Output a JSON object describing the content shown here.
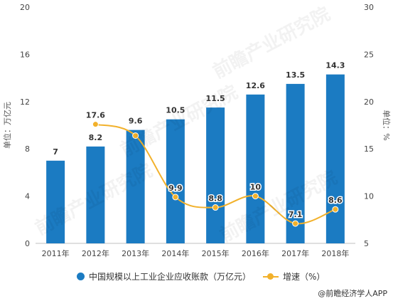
{
  "watermark": "前瞻产业研究院",
  "source": "@前瞻经济学人APP",
  "colors": {
    "bar": "#1B7BC2",
    "line": "#F2B12B",
    "grid": "#d9d9d9"
  },
  "chart_data": {
    "type": "bar",
    "categories": [
      "2011年",
      "2012年",
      "2013年",
      "2014年",
      "2015年",
      "2016年",
      "2017年",
      "2018年"
    ],
    "series": [
      {
        "name": "中国规模以上工业企业应收账款（万亿元）",
        "type": "bar",
        "axis": "left",
        "values": [
          7,
          8.2,
          9.6,
          10.5,
          11.5,
          12.6,
          13.5,
          14.3
        ],
        "labels": [
          "7",
          "8.2",
          "9.6",
          "10.5",
          "11.5",
          "12.6",
          "13.5",
          "14.3"
        ]
      },
      {
        "name": "增速（%）",
        "type": "line",
        "axis": "right",
        "values": [
          null,
          17.6,
          16.4,
          9.9,
          8.8,
          10,
          7.1,
          8.6
        ],
        "labels": [
          "",
          "17.6",
          "",
          "9.9",
          "8.8",
          "10",
          "7.1",
          "8.6"
        ]
      }
    ],
    "ylabel": "单位：万亿元",
    "y2label": "单位：%",
    "ylim": [
      0,
      20
    ],
    "y2lim": [
      5,
      30
    ],
    "yticks": [
      "0",
      "4",
      "8",
      "12",
      "16",
      "20"
    ],
    "y2ticks": [
      "5",
      "10",
      "15",
      "20",
      "25",
      "30"
    ],
    "grid": false,
    "legend": "bottom"
  }
}
